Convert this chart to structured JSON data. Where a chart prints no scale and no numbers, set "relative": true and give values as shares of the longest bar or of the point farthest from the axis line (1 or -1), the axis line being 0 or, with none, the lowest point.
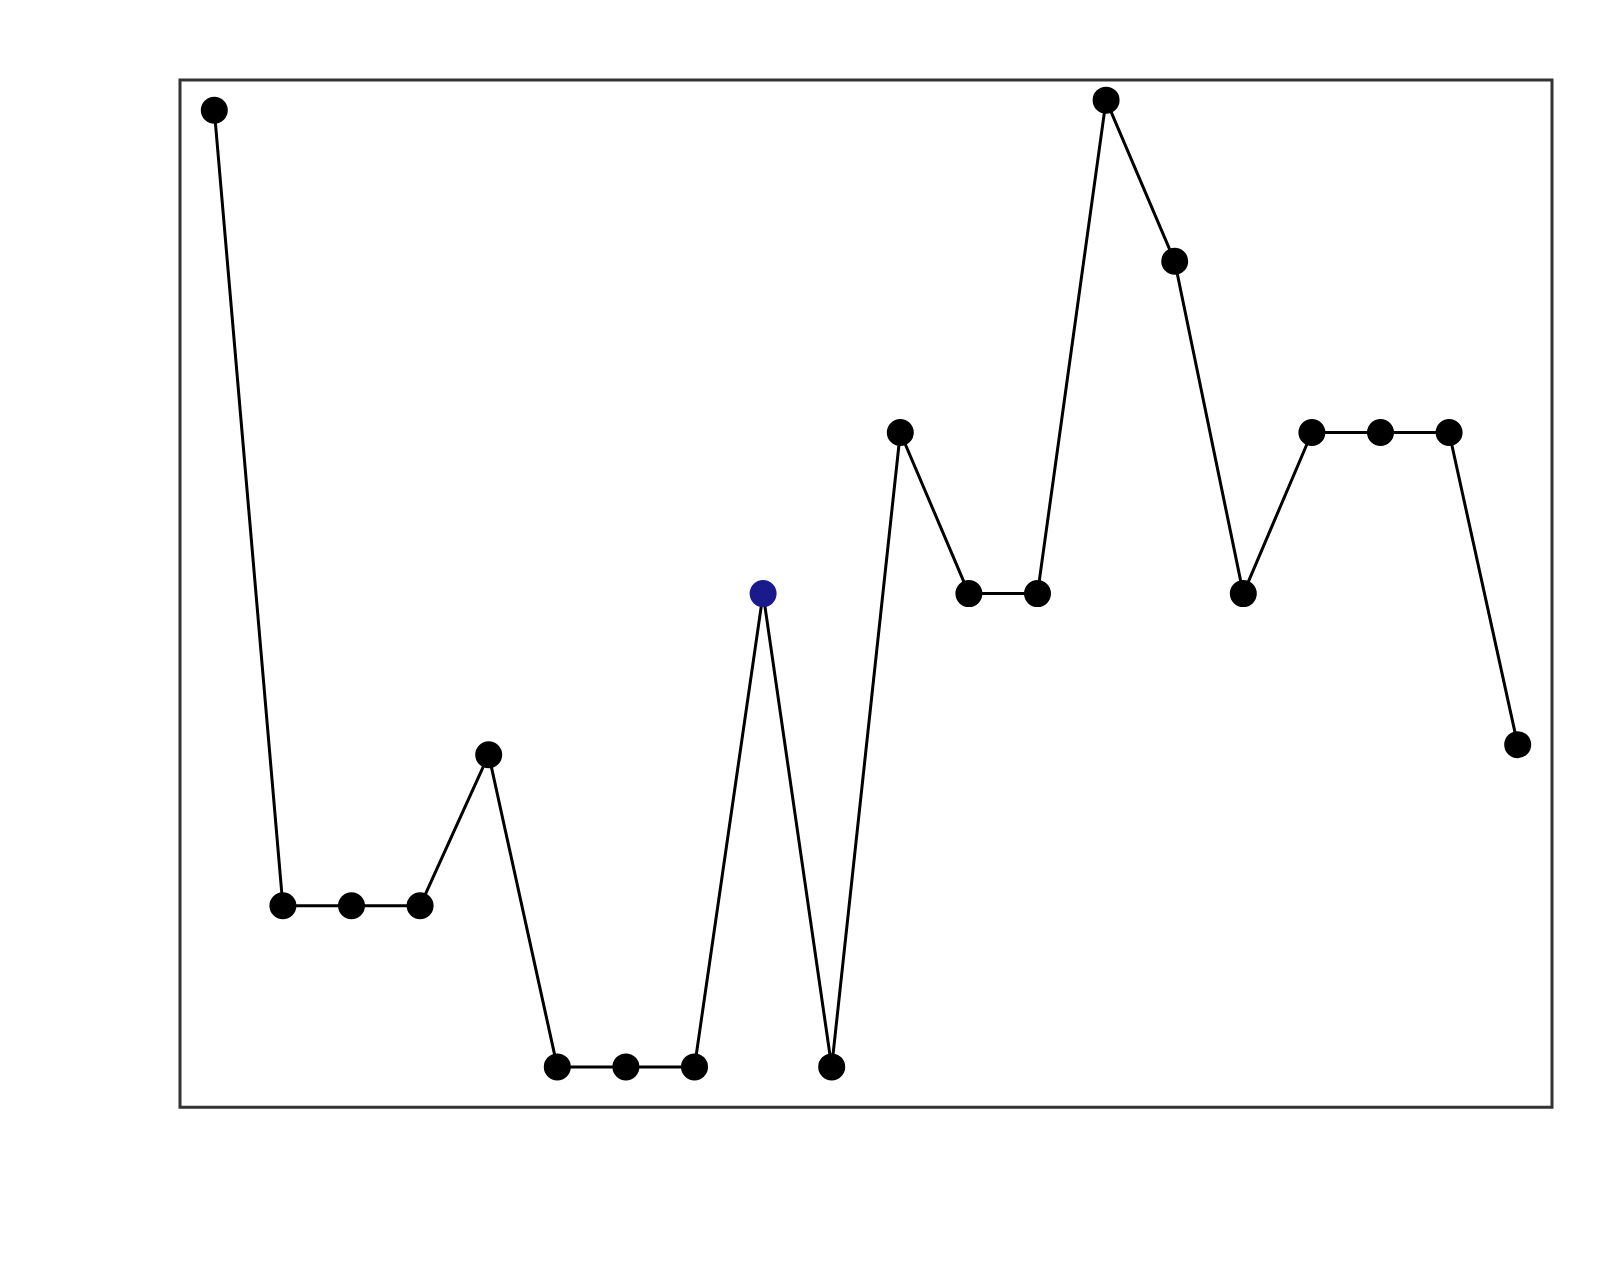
{
  "chart_data": {
    "type": "line",
    "relative": true,
    "marker": "circle",
    "line_style": "solid",
    "grid": false,
    "legend": false,
    "categories": [
      null,
      null,
      null,
      null,
      null,
      null,
      null,
      null,
      null,
      null,
      null,
      null,
      null,
      null,
      null,
      null,
      null,
      null,
      null,
      null
    ],
    "series": [
      {
        "color": "#000000",
        "colors": [
          "#000000",
          "#000000",
          "#000000",
          "#000000",
          "#000000",
          "#000000",
          "#000000",
          "#000000",
          "#1a1a8c",
          "#000000",
          "#000000",
          "#000000",
          "#000000",
          "#000000",
          "#000000",
          "#000000",
          "#000000",
          "#000000",
          "#000000",
          "#000000"
        ],
        "values": [
          0.99,
          0.2,
          0.2,
          0.2,
          0.35,
          0.04,
          0.04,
          0.04,
          0.51,
          0.04,
          0.67,
          0.51,
          0.51,
          1,
          0.84,
          0.51,
          0.67,
          0.67,
          0.67,
          0.36
        ]
      }
    ]
  }
}
